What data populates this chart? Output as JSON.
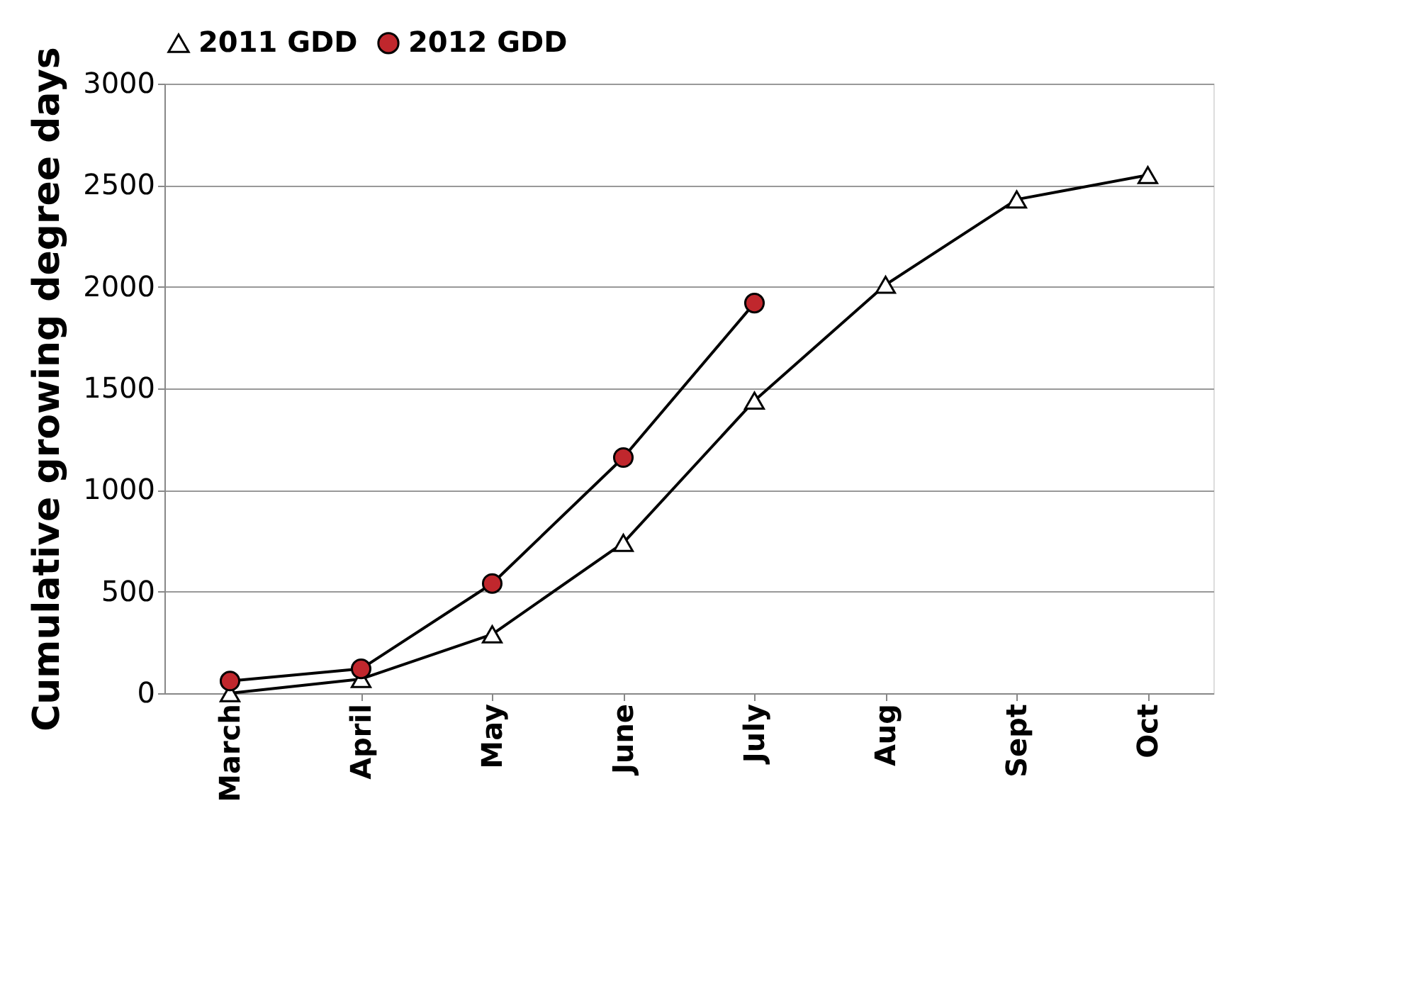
{
  "chart_data": {
    "type": "line",
    "ylabel": "Cumulative growing degree days",
    "categories": [
      "March",
      "April",
      "May",
      "June",
      "July",
      "Aug",
      "Sept",
      "Oct"
    ],
    "series": [
      {
        "name": "2011 GDD",
        "color": "#ffffff",
        "marker": "triangle",
        "values": [
          0,
          70,
          290,
          740,
          1440,
          2010,
          2430,
          2550
        ]
      },
      {
        "name": "2012 GDD",
        "color": "#c0272d",
        "marker": "circle",
        "values": [
          60,
          120,
          540,
          1160,
          1920,
          null,
          null,
          null
        ]
      }
    ],
    "ylim": [
      0,
      3000
    ],
    "yticks": [
      0,
      500,
      1000,
      1500,
      2000,
      2500,
      3000
    ],
    "grid": "y",
    "legend": "top",
    "line_style": "solid"
  }
}
